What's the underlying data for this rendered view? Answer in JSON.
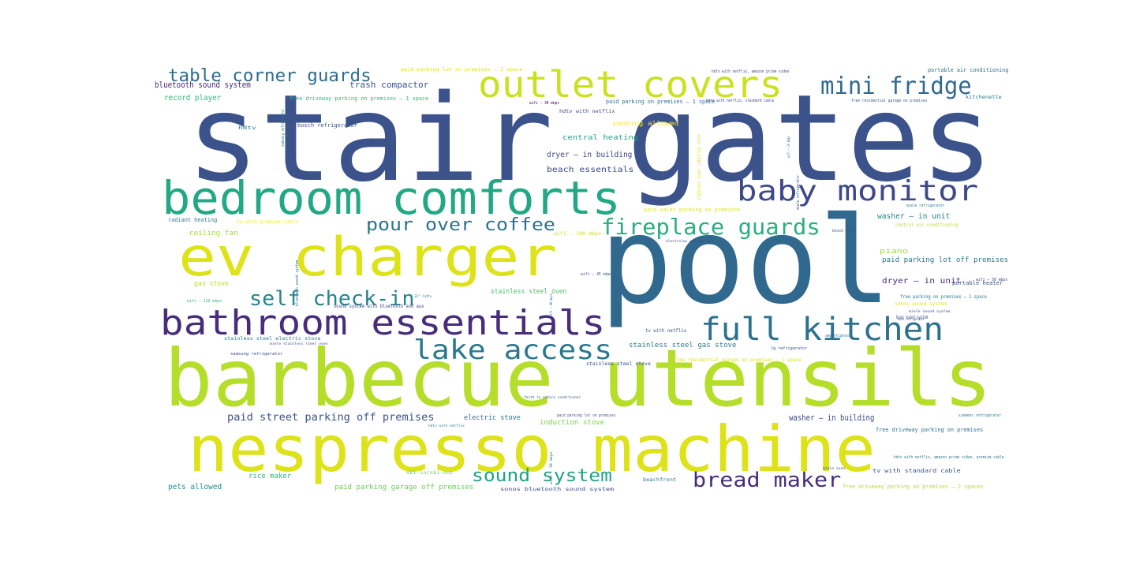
{
  "words": [
    {
      "text": "stair gates",
      "color": "#3b528b"
    },
    {
      "text": "pool",
      "color": "#31688e"
    },
    {
      "text": "barbecue utensils",
      "color": "#b5de2b"
    },
    {
      "text": "nespresso machine",
      "color": "#dde318"
    },
    {
      "text": "ev charger",
      "color": "#dde318"
    },
    {
      "text": "bedroom comforts",
      "color": "#22a884"
    },
    {
      "text": "bathroom essentials",
      "color": "#472d7b"
    },
    {
      "text": "outlet covers",
      "color": "#cae11f"
    },
    {
      "text": "full kitchen",
      "color": "#2c728e"
    },
    {
      "text": "baby monitor",
      "color": "#3e4989"
    },
    {
      "text": "lake access",
      "color": "#2a788e"
    },
    {
      "text": "mini fridge",
      "color": "#31688e"
    },
    {
      "text": "table corner guards",
      "color": "#2f6c8e"
    },
    {
      "text": "fireplace guards",
      "color": "#29af7f"
    },
    {
      "text": "pour over coffee",
      "color": "#2c728e"
    },
    {
      "text": "self check-in",
      "color": "#25858e"
    },
    {
      "text": "bread maker",
      "color": "#472d7b"
    },
    {
      "text": "sound system",
      "color": "#20a386"
    },
    {
      "text": "paid street parking off premises",
      "color": "#3b528b"
    },
    {
      "text": "bluetooth sound system",
      "color": "#482878"
    },
    {
      "text": "trash compactor",
      "color": "#3b528b"
    },
    {
      "text": "record player",
      "color": "#35b779"
    },
    {
      "text": "dryer – in building",
      "color": "#414487"
    },
    {
      "text": "beach essentials",
      "color": "#3e4989"
    },
    {
      "text": "central heating",
      "color": "#20a386"
    },
    {
      "text": "washer – in unit",
      "color": "#25858e"
    },
    {
      "text": "paid parking lot off premises",
      "color": "#2a788e"
    },
    {
      "text": "dryer – in unit",
      "color": "#472d7b"
    },
    {
      "text": "piano",
      "color": "#a0da39"
    },
    {
      "text": "portable heater",
      "color": "#3b528b"
    },
    {
      "text": "ceiling fan",
      "color": "#a0da39"
    },
    {
      "text": "gas stove",
      "color": "#b5de2b"
    },
    {
      "text": "stainless steel oven",
      "color": "#4ac16d"
    },
    {
      "text": "stainless steel gas stove",
      "color": "#2a788e"
    },
    {
      "text": "washer – in building",
      "color": "#3e4989"
    },
    {
      "text": "electric stove",
      "color": "#2c728e"
    },
    {
      "text": "induction stove",
      "color": "#7ad151"
    },
    {
      "text": "free driveway parking on premises",
      "color": "#2c728e"
    },
    {
      "text": "rice maker",
      "color": "#2fb47c"
    },
    {
      "text": "pets allowed",
      "color": "#228d8d"
    },
    {
      "text": "paid parking garage off premises",
      "color": "#6ccd5a"
    },
    {
      "text": "sonos bluetooth sound system",
      "color": "#3e4989"
    },
    {
      "text": "tv with standard cable",
      "color": "#3b528b"
    },
    {
      "text": "free driveway parking on premises – 2 spaces",
      "color": "#b5de2b"
    },
    {
      "text": "ski-in/ski-out",
      "color": "#6ccd5a"
    },
    {
      "text": "beachfront",
      "color": "#2a788e"
    },
    {
      "text": "free driveway parking on premises – 1 space",
      "color": "#35b779"
    },
    {
      "text": "paid parking on premises – 1 space",
      "color": "#2c728e"
    },
    {
      "text": "paid parking lot on premises – 1 space",
      "color": "#dde318"
    },
    {
      "text": "portable air conditioning",
      "color": "#2c728e"
    },
    {
      "text": "hdtv with netflix",
      "color": "#3e4989"
    },
    {
      "text": "smoking allowed",
      "color": "#fde725"
    },
    {
      "text": "bosch refrigerator",
      "color": "#3b528b"
    },
    {
      "text": "hdtv",
      "color": "#2a788e"
    },
    {
      "text": "kitchenette",
      "color": "#2a788e"
    },
    {
      "text": "free residential garage on premises",
      "color": "#3b528b"
    },
    {
      "text": "hdtv with netflix, standard cable",
      "color": "#3e4989"
    },
    {
      "text": "hdtv with netflix, amazon prime video",
      "color": "#3e4989"
    },
    {
      "text": "wifi – 30 mbps",
      "color": "#440154"
    },
    {
      "text": "radiant heating",
      "color": "#2a788e"
    },
    {
      "text": "tv with premium cable",
      "color": "#fde725"
    },
    {
      "text": "paid valet parking on premises",
      "color": "#dde318"
    },
    {
      "text": "central air conditioning",
      "color": "#b5de2b"
    },
    {
      "text": "miele refrigerator",
      "color": "#2a788e"
    },
    {
      "text": "bosch oven",
      "color": "#3b528b"
    },
    {
      "text": "electrolux refrigerator",
      "color": "#3b528b"
    },
    {
      "text": "wifi – 100 mbps",
      "color": "#cae11f"
    },
    {
      "text": "wifi – 45 mbps",
      "color": "#3b528b"
    },
    {
      "text": "wifi – 50 mbps",
      "color": "#414487"
    },
    {
      "text": "sonos sound system",
      "color": "#dde318"
    },
    {
      "text": "wifi – 110 mbps",
      "color": "#35b779"
    },
    {
      "text": "32\" hdtv",
      "color": "#2a788e"
    },
    {
      "text": "sound system with bluetooth and aux",
      "color": "#3e4989"
    },
    {
      "text": "miele sound system",
      "color": "#3b528b"
    },
    {
      "text": "bose sound system",
      "color": "#3b528b"
    },
    {
      "text": "tv with netflix",
      "color": "#3b528b"
    },
    {
      "text": "stainless steel electric stove",
      "color": "#2a788e"
    },
    {
      "text": "miele stainless steel oven",
      "color": "#3b528b"
    },
    {
      "text": "samsung refrigerator",
      "color": "#3e4989"
    },
    {
      "text": "free residential garage on premises – 1 space",
      "color": "#dde318"
    },
    {
      "text": "stainless steel stove",
      "color": "#3b528b"
    },
    {
      "text": "lg refrigerator",
      "color": "#3b528b"
    },
    {
      "text": "smeg refrigerator",
      "color": "#2a788e"
    },
    {
      "text": "free parking on premises – 1 space",
      "color": "#2a788e"
    },
    {
      "text": "bose refrigerator",
      "color": "#3b528b"
    },
    {
      "text": "faith in nature conditioner",
      "color": "#3b528b"
    },
    {
      "text": "paid parking lot on premises",
      "color": "#3b528b"
    },
    {
      "text": "hdtv with netflix",
      "color": "#2a788e"
    },
    {
      "text": "siemens refrigerator",
      "color": "#2a788e"
    },
    {
      "text": "hdtv with netflix, amazon prime video, premium cable",
      "color": "#2a788e"
    },
    {
      "text": "miele oven",
      "color": "#3b528b"
    },
    {
      "text": "wifi – 20 mbps",
      "color": "#2a788e"
    },
    {
      "text": "stainless steel induction stove",
      "color": "#dde318"
    },
    {
      "text": "wifi – 30 mbps",
      "color": "#2a788e"
    },
    {
      "text": "samsung refrigerator",
      "color": "#2a788e"
    },
    {
      "text": "wifi – 40 mbps",
      "color": "#2a788e"
    },
    {
      "text": "bluetooth sound system",
      "color": "#2a788e"
    },
    {
      "text": "miele refrigerator",
      "color": "#3b528b"
    }
  ]
}
